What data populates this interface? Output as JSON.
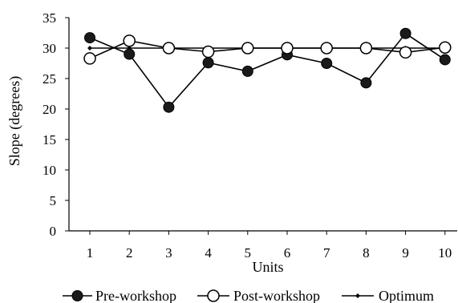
{
  "chart_data": {
    "type": "line",
    "xlabel": "Units",
    "ylabel": "Slope (degrees)",
    "categories": [
      "1",
      "2",
      "3",
      "4",
      "5",
      "6",
      "7",
      "8",
      "9",
      "10"
    ],
    "ylim": [
      0,
      35
    ],
    "yticks": [
      "0",
      "5",
      "10",
      "15",
      "20",
      "25",
      "30",
      "35"
    ],
    "grid": false,
    "legend_position": "bottom",
    "series": [
      {
        "name": "Pre-workshop",
        "marker": "filled-circle",
        "color": "#000000",
        "values": [
          31.7,
          29.0,
          20.3,
          27.6,
          26.2,
          28.9,
          27.5,
          24.3,
          32.4,
          28.1
        ]
      },
      {
        "name": "Post-workshop",
        "marker": "open-circle",
        "color": "#000000",
        "values": [
          28.3,
          31.2,
          30.0,
          29.4,
          30.0,
          30.0,
          30.0,
          30.0,
          29.3,
          30.1
        ]
      },
      {
        "name": "Optimum",
        "marker": "small-dot",
        "color": "#000000",
        "values": [
          30,
          30,
          30,
          30,
          30,
          30,
          30,
          30,
          30,
          30
        ]
      }
    ]
  }
}
